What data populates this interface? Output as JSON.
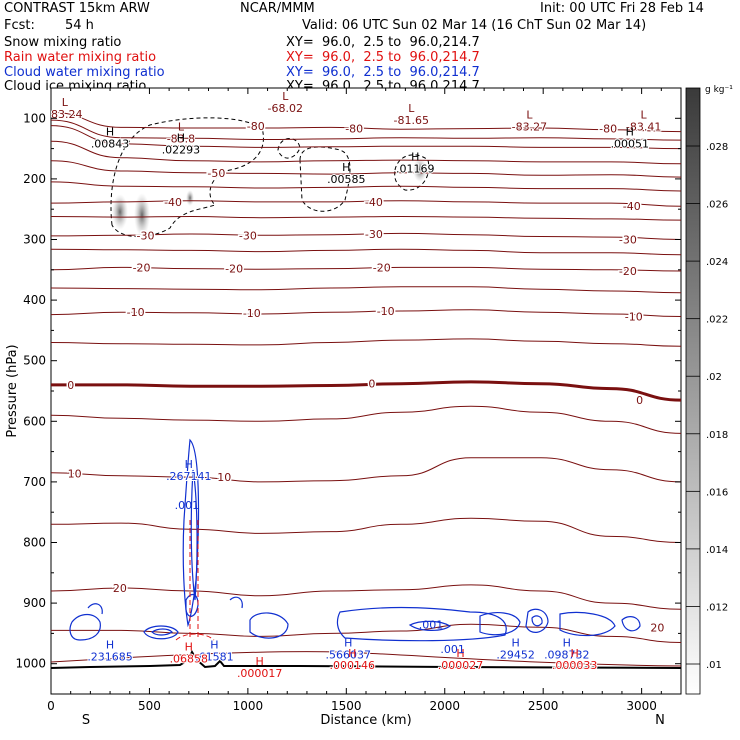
{
  "header": {
    "title_left": "CONTRAST 15km ARW",
    "title_center": "NCAR/MMM",
    "init": "Init: 00 UTC Fri 28 Feb 14",
    "fcst_label": "Fcst:",
    "fcst_value": "54 h",
    "valid": "Valid: 06 UTC Sun 02 Mar 14 (16 ChT Sun 02 Mar 14)"
  },
  "fields": [
    {
      "name": "Snow mixing ratio",
      "xy": "XY=  96.0,  2.5 to  96.0,214.7",
      "color": "#000000"
    },
    {
      "name": "Rain water mixing ratio",
      "xy": "XY=  96.0,  2.5 to  96.0,214.7",
      "color": "#e01010"
    },
    {
      "name": "Cloud water mixing ratio",
      "xy": "XY=  96.0,  2.5 to  96.0,214.7",
      "color": "#1030d0"
    },
    {
      "name": "Cloud ice mixing ratio",
      "xy": "XY=  96.0,  2.5 to  96.0,214.7",
      "color": "#000000"
    }
  ],
  "chart_data": {
    "type": "cross-section",
    "title": "CONTRAST 15km ARW",
    "xlabel": "Distance (km)",
    "ylabel": "Pressure (hPa)",
    "xlim": [
      0,
      3200
    ],
    "ylim": [
      1050,
      50
    ],
    "x_ticks": [
      0,
      500,
      1000,
      1500,
      2000,
      2500,
      3000
    ],
    "y_ticks": [
      100,
      200,
      300,
      400,
      500,
      600,
      700,
      800,
      900,
      1000
    ],
    "end_labels": {
      "left": "S",
      "right": "N"
    },
    "colorbar": {
      "unit": "g kg⁻¹",
      "ticks": [
        ".01",
        ".012",
        ".014",
        ".016",
        ".018",
        ".02",
        ".022",
        ".024",
        ".026",
        ".028"
      ]
    },
    "temperature_contours": [
      {
        "level": -80,
        "label": "-80",
        "p": [
          90,
          115,
          116,
          116,
          115,
          118,
          117,
          116,
          119,
          122
        ]
      },
      {
        "level": -70,
        "label": "",
        "p": [
          103,
          132,
          133,
          135,
          134,
          132,
          133,
          132,
          134,
          136
        ]
      },
      {
        "level": -60,
        "label": "",
        "p": [
          112,
          142,
          146,
          148,
          147,
          146,
          146,
          148,
          148,
          150
        ]
      },
      {
        "level": -55,
        "label": "",
        "p": [
          138,
          165,
          170,
          172,
          170,
          169,
          170,
          172,
          172,
          175
        ]
      },
      {
        "level": -50,
        "label": "-50",
        "p": [
          170,
          187,
          190,
          191,
          192,
          190,
          191,
          194,
          193,
          197
        ]
      },
      {
        "level": -45,
        "label": "",
        "p": [
          205,
          212,
          213,
          215,
          214,
          212,
          214,
          216,
          216,
          220
        ]
      },
      {
        "level": -40,
        "label": "-40",
        "p": [
          240,
          238,
          236,
          238,
          238,
          236,
          238,
          240,
          240,
          245
        ]
      },
      {
        "level": -35,
        "label": "",
        "p": [
          262,
          263,
          262,
          264,
          263,
          262,
          263,
          265,
          266,
          268
        ]
      },
      {
        "level": -30,
        "label": "-30",
        "p": [
          294,
          293,
          291,
          293,
          292,
          290,
          292,
          295,
          296,
          300
        ]
      },
      {
        "level": -25,
        "label": "",
        "p": [
          316,
          317,
          318,
          320,
          318,
          316,
          318,
          322,
          322,
          325
        ]
      },
      {
        "level": -20,
        "label": "-20",
        "p": [
          350,
          346,
          348,
          349,
          348,
          346,
          346,
          349,
          350,
          352
        ]
      },
      {
        "level": -15,
        "label": "",
        "p": [
          380,
          381,
          382,
          383,
          380,
          378,
          378,
          382,
          385,
          388
        ]
      },
      {
        "level": -10,
        "label": "-10",
        "p": [
          424,
          420,
          421,
          423,
          420,
          418,
          416,
          420,
          423,
          427
        ]
      },
      {
        "level": -5,
        "label": "",
        "p": [
          470,
          472,
          473,
          474,
          470,
          466,
          464,
          468,
          472,
          476
        ]
      },
      {
        "level": 0,
        "label": "0",
        "p": [
          540,
          540,
          542,
          542,
          541,
          538,
          535,
          538,
          546,
          565
        ]
      },
      {
        "level": 5,
        "label": "",
        "p": [
          590,
          595,
          598,
          600,
          596,
          585,
          575,
          585,
          600,
          620
        ]
      },
      {
        "level": 10,
        "label": "10",
        "p": [
          685,
          690,
          692,
          700,
          698,
          690,
          660,
          660,
          680,
          700
        ]
      },
      {
        "level": 15,
        "label": "",
        "p": [
          770,
          768,
          778,
          785,
          782,
          770,
          760,
          765,
          790,
          800
        ]
      },
      {
        "level": 20,
        "label": "20",
        "p": [
          880,
          875,
          880,
          888,
          880,
          878,
          870,
          880,
          900,
          910
        ]
      },
      {
        "level": 25,
        "label": "",
        "p": [
          945,
          945,
          950,
          955,
          950,
          946,
          935,
          940,
          955,
          965
        ]
      }
    ],
    "temperature_labels": [
      {
        "text": "-80",
        "x": 1040,
        "p": 113
      },
      {
        "text": "-80",
        "x": 1540,
        "p": 117
      },
      {
        "text": "-80",
        "x": 2830,
        "p": 117
      },
      {
        "text": "-50",
        "x": 840,
        "p": 190
      },
      {
        "text": "-40",
        "x": 620,
        "p": 238
      },
      {
        "text": "-40",
        "x": 1640,
        "p": 238
      },
      {
        "text": "-40",
        "x": 2950,
        "p": 245
      },
      {
        "text": "-30",
        "x": 480,
        "p": 293
      },
      {
        "text": "-30",
        "x": 1000,
        "p": 293
      },
      {
        "text": "-30",
        "x": 1640,
        "p": 291
      },
      {
        "text": "-30",
        "x": 2930,
        "p": 300
      },
      {
        "text": "-20",
        "x": 460,
        "p": 346
      },
      {
        "text": "-20",
        "x": 930,
        "p": 348
      },
      {
        "text": "-20",
        "x": 1680,
        "p": 346
      },
      {
        "text": "-20",
        "x": 2930,
        "p": 352
      },
      {
        "text": "-10",
        "x": 430,
        "p": 420
      },
      {
        "text": "-10",
        "x": 1020,
        "p": 421
      },
      {
        "text": "-10",
        "x": 1700,
        "p": 418
      },
      {
        "text": "-10",
        "x": 2960,
        "p": 427
      },
      {
        "text": "0",
        "x": 100,
        "p": 540
      },
      {
        "text": "0",
        "x": 1630,
        "p": 538
      },
      {
        "text": "0",
        "x": 2990,
        "p": 565
      },
      {
        "text": "10",
        "x": 120,
        "p": 686
      },
      {
        "text": "10",
        "x": 880,
        "p": 692
      },
      {
        "text": "20",
        "x": 350,
        "p": 875
      },
      {
        "text": "20",
        "x": 3080,
        "p": 940
      }
    ],
    "extrema": [
      {
        "type": "L",
        "value": "-83.24",
        "x": 70,
        "p": 80,
        "color": "#7a1010"
      },
      {
        "type": "L",
        "value": "-83.8",
        "x": 660,
        "p": 120,
        "color": "#7a1010"
      },
      {
        "type": "L",
        "value": "-68.02",
        "x": 1190,
        "p": 70,
        "color": "#7a1010"
      },
      {
        "type": "L",
        "value": "-81.65",
        "x": 1830,
        "p": 90,
        "color": "#7a1010"
      },
      {
        "type": "L",
        "value": "-83.27",
        "x": 2430,
        "p": 100,
        "color": "#7a1010"
      },
      {
        "type": "L",
        "value": "-83.41",
        "x": 3010,
        "p": 100,
        "color": "#7a1010"
      },
      {
        "type": "H",
        "value": ".00843",
        "x": 300,
        "p": 128,
        "color": "#000000"
      },
      {
        "type": "H",
        "value": ".02293",
        "x": 660,
        "p": 138,
        "color": "#000000"
      },
      {
        "type": "H",
        "value": ".00585",
        "x": 1500,
        "p": 187,
        "color": "#000000"
      },
      {
        "type": "H",
        "value": ".01169",
        "x": 1850,
        "p": 170,
        "color": "#000000"
      },
      {
        "type": "H",
        "value": ".00051",
        "x": 2940,
        "p": 128,
        "color": "#000000"
      },
      {
        "type": "H",
        "value": ".267141",
        "x": 700,
        "p": 677,
        "color": "#1030d0"
      },
      {
        "type": "H",
        "value": ".231685",
        "x": 300,
        "p": 975,
        "color": "#1030d0"
      },
      {
        "type": "H",
        "value": ".61581",
        "x": 830,
        "p": 975,
        "color": "#1030d0"
      },
      {
        "type": "H",
        "value": ".566037",
        "x": 1510,
        "p": 972,
        "color": "#1030d0"
      },
      {
        "type": "H",
        "value": ".29452",
        "x": 2360,
        "p": 972,
        "color": "#1030d0"
      },
      {
        "type": "H",
        "value": ".098732",
        "x": 2620,
        "p": 972,
        "color": "#1030d0"
      },
      {
        "type": "H",
        "value": ".06858",
        "x": 700,
        "p": 978,
        "color": "#e01010"
      },
      {
        "type": "H",
        "value": ".000017",
        "x": 1060,
        "p": 1002,
        "color": "#e01010"
      },
      {
        "type": "H",
        "value": ".000146",
        "x": 1530,
        "p": 989,
        "color": "#e01010"
      },
      {
        "type": "H",
        "value": ".000027",
        "x": 2080,
        "p": 989,
        "color": "#e01010"
      },
      {
        "type": "H",
        "value": ".000033",
        "x": 2660,
        "p": 989,
        "color": "#e01010"
      }
    ],
    "cloud_water_labels": [
      {
        "text": ".001",
        "x": 690,
        "p": 745
      },
      {
        "text": ".001",
        "x": 1930,
        "p": 942
      },
      {
        "text": ".001",
        "x": 2040,
        "p": 982
      }
    ],
    "ice_label": {
      "text": "-30",
      "x": 480,
      "p": 293
    }
  }
}
